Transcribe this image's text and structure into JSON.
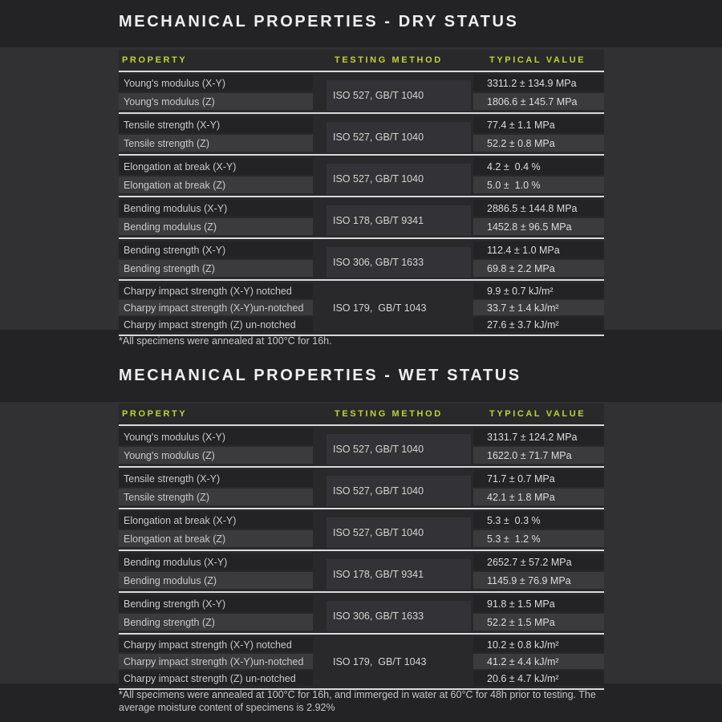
{
  "accent_color": "#bdd52f",
  "line_color": "#d9d9d9",
  "sections": [
    {
      "title": "MECHANICAL PROPERTIES - DRY STATUS",
      "columns": {
        "property": "PROPERTY",
        "method": "TESTING METHOD",
        "value": "TYPICAL VALUE"
      },
      "groups": [
        {
          "method": "ISO 527, GB/T 1040",
          "rows": [
            {
              "property": "Young's modulus (X-Y)",
              "value": "3311.2 ± 134.9 MPa"
            },
            {
              "property": "Young's modulus (Z)",
              "value": "1806.6 ± 145.7 MPa"
            }
          ]
        },
        {
          "method": "ISO 527, GB/T 1040",
          "rows": [
            {
              "property": "Tensile strength (X-Y)",
              "value": "77.4 ± 1.1 MPa"
            },
            {
              "property": "Tensile strength (Z)",
              "value": "52.2 ± 0.8 MPa"
            }
          ]
        },
        {
          "method": "ISO 527, GB/T 1040",
          "rows": [
            {
              "property": "Elongation at break (X-Y)",
              "value": "4.2 ±  0.4 %"
            },
            {
              "property": "Elongation at break (Z)",
              "value": "5.0 ±  1.0 %"
            }
          ]
        },
        {
          "method": "ISO 178, GB/T 9341",
          "rows": [
            {
              "property": "Bending modulus (X-Y)",
              "value": "2886.5 ± 144.8 MPa"
            },
            {
              "property": "Bending modulus (Z)",
              "value": "1452.8 ± 96.5 MPa"
            }
          ]
        },
        {
          "method": "ISO 306, GB/T 1633",
          "rows": [
            {
              "property": "Bending strength (X-Y)",
              "value": "112.4 ± 1.0 MPa"
            },
            {
              "property": "Bending strength (Z)",
              "value": "69.8 ± 2.2 MPa"
            }
          ]
        },
        {
          "method": "ISO 179,  GB/T 1043",
          "rows": [
            {
              "property": "Charpy impact strength (X-Y) notched",
              "value": "9.9 ± 0.7 kJ/m²"
            },
            {
              "property": "Charpy impact strength (X-Y)un-notched",
              "value": "33.7 ± 1.4 kJ/m²"
            },
            {
              "property": "Charpy impact strength (Z) un-notched",
              "value": "27.6 ± 3.7 kJ/m²"
            }
          ]
        }
      ],
      "footnote_lines": [
        "*All specimens were annealed at 100°C for 16h."
      ]
    },
    {
      "title": "MECHANICAL PROPERTIES - WET STATUS",
      "columns": {
        "property": "PROPERTY",
        "method": "TESTING METHOD",
        "value": "TYPICAL VALUE"
      },
      "groups": [
        {
          "method": "ISO 527, GB/T 1040",
          "rows": [
            {
              "property": "Young's modulus (X-Y)",
              "value": "3131.7 ± 124.2 MPa"
            },
            {
              "property": "Young's modulus (Z)",
              "value": "1622.0 ± 71.7 MPa"
            }
          ]
        },
        {
          "method": "ISO 527, GB/T 1040",
          "rows": [
            {
              "property": "Tensile strength (X-Y)",
              "value": "71.7 ± 0.7 MPa"
            },
            {
              "property": "Tensile strength (Z)",
              "value": "42.1 ± 1.8 MPa"
            }
          ]
        },
        {
          "method": "ISO 527, GB/T 1040",
          "rows": [
            {
              "property": "Elongation at break (X-Y)",
              "value": "5.3 ±  0.3 %"
            },
            {
              "property": "Elongation at break (Z)",
              "value": "5.3 ±  1.2 %"
            }
          ]
        },
        {
          "method": "ISO 178, GB/T 9341",
          "rows": [
            {
              "property": "Bending modulus (X-Y)",
              "value": "2652.7 ± 57.2 MPa"
            },
            {
              "property": "Bending modulus (Z)",
              "value": "1145.9 ± 76.9 MPa"
            }
          ]
        },
        {
          "method": "ISO 306, GB/T 1633",
          "rows": [
            {
              "property": "Bending strength (X-Y)",
              "value": "91.8 ± 1.5 MPa"
            },
            {
              "property": "Bending strength (Z)",
              "value": "52.2 ± 1.5 MPa"
            }
          ]
        },
        {
          "method": "ISO 179,  GB/T 1043",
          "rows": [
            {
              "property": "Charpy impact strength (X-Y) notched",
              "value": "10.2 ± 0.8 kJ/m²"
            },
            {
              "property": "Charpy impact strength (X-Y)un-notched",
              "value": "41.2 ± 4.4 kJ/m²"
            },
            {
              "property": "Charpy impact strength (Z) un-notched",
              "value": "20.6 ± 4.7 kJ/m²"
            }
          ]
        }
      ],
      "footnote_lines": [
        "*All specimens were annealed at 100°C for 16h, and immerged in water at 60°C for 48h prior to testing. The",
        "average moisture content of specimens is 2.92%"
      ]
    }
  ]
}
